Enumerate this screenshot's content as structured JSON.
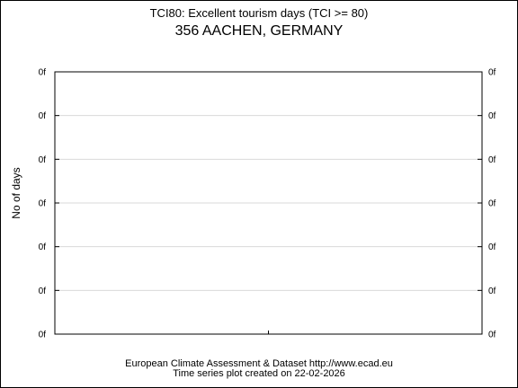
{
  "title": "TCI80: Excellent tourism days (TCI >= 80)",
  "subtitle": "356 AACHEN, GERMANY",
  "footer": {
    "line1": "European Climate Assessment & Dataset  http://www.ecad.eu",
    "line2": "Time series plot created on 22-02-2026"
  },
  "chart_data": {
    "type": "line",
    "title": "TCI80: Excellent tourism days (TCI >= 80)",
    "subtitle": "356 AACHEN, GERMANY",
    "ylabel": "No of days",
    "xlabel": "",
    "y_tick_labels": [
      "0f",
      "0f",
      "0f",
      "0f",
      "0f",
      "0f",
      "0f"
    ],
    "x_tick_labels": [],
    "series": [],
    "grid": true,
    "gridlines": "horizontal",
    "colors": {
      "axis": "#000000",
      "grid": "#d9d9d9"
    }
  }
}
